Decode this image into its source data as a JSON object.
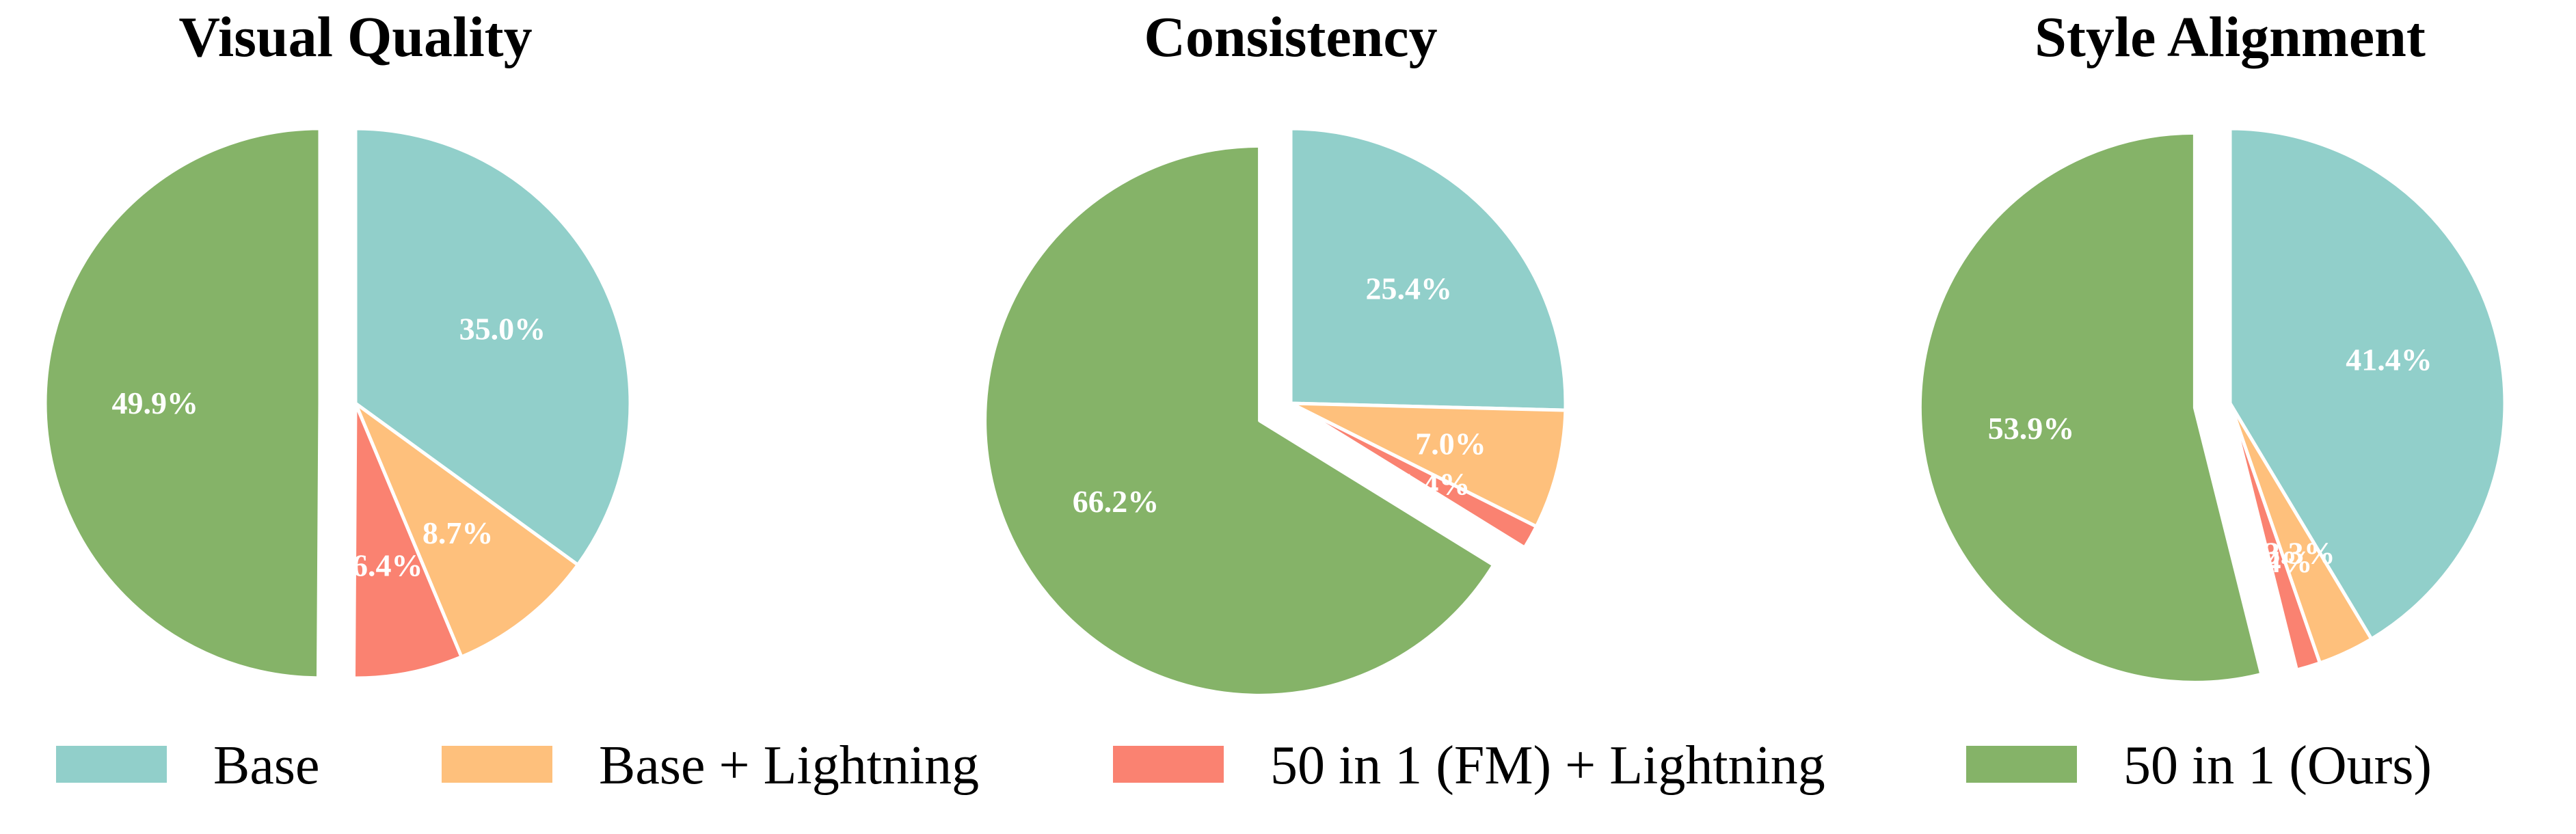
{
  "chart_data": [
    {
      "type": "pie",
      "title": "Visual Quality",
      "categories": [
        "Base",
        "Base + Lightning",
        "50 in 1 (FM) + Lightning",
        "50 in 1 (Ours)"
      ],
      "values": [
        35.0,
        8.7,
        6.4,
        49.9
      ],
      "labels": [
        "35.0%",
        "8.7%",
        "6.4%",
        "49.9%"
      ],
      "exploded": "50 in 1 (Ours)"
    },
    {
      "type": "pie",
      "title": "Consistency",
      "categories": [
        "Base",
        "Base + Lightning",
        "50 in 1 (FM) + Lightning",
        "50 in 1 (Ours)"
      ],
      "values": [
        25.4,
        7.0,
        1.4,
        66.2
      ],
      "labels": [
        "25.4%",
        "7.0%",
        "1.4%",
        "66.2%"
      ],
      "exploded": "50 in 1 (Ours)"
    },
    {
      "type": "pie",
      "title": "Style Alignment",
      "categories": [
        "Base",
        "Base + Lightning",
        "50 in 1 (FM) + Lightning",
        "50 in 1 (Ours)"
      ],
      "values": [
        41.4,
        3.3,
        1.4,
        53.9
      ],
      "labels": [
        "41.4%",
        "3.3%",
        "1.4%",
        "53.9%"
      ],
      "exploded": "50 in 1 (Ours)"
    }
  ],
  "legend": {
    "placement": "bottom",
    "entries": [
      {
        "label": "Base",
        "color": "#91CFCA"
      },
      {
        "label": "Base + Lightning",
        "color": "#FEC07C"
      },
      {
        "label": "50 in 1 (FM) + Lightning",
        "color": "#FA8271"
      },
      {
        "label": "50 in 1 (Ours)",
        "color": "#85B368"
      }
    ]
  }
}
